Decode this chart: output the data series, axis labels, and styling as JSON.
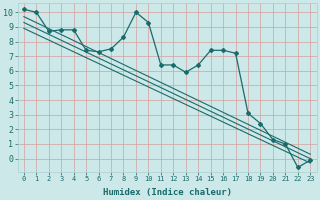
{
  "xlabel": "Humidex (Indice chaleur)",
  "ylabel": "",
  "bg_color": "#cce8e8",
  "grid_color": "#aacfcf",
  "line_color": "#1a6b6b",
  "xlim": [
    -0.5,
    23.5
  ],
  "ylim": [
    -0.9,
    10.6
  ],
  "x_ticks": [
    0,
    1,
    2,
    3,
    4,
    5,
    6,
    7,
    8,
    9,
    10,
    11,
    12,
    13,
    14,
    15,
    16,
    17,
    18,
    19,
    20,
    21,
    22,
    23
  ],
  "y_ticks": [
    0,
    1,
    2,
    3,
    4,
    5,
    6,
    7,
    8,
    9,
    10
  ],
  "y_tick_labels": [
    "0",
    "1",
    "2",
    "3",
    "4",
    "5",
    "6",
    "7",
    "8",
    "9",
    "10"
  ],
  "main_line_x": [
    0,
    1,
    2,
    3,
    4,
    5,
    6,
    7,
    8,
    9,
    10,
    11,
    12,
    13,
    14,
    15,
    16,
    17,
    18,
    19,
    20,
    21,
    22,
    23
  ],
  "main_line_y": [
    10.2,
    10.0,
    8.7,
    8.8,
    8.8,
    7.4,
    7.3,
    7.5,
    8.3,
    10.0,
    9.3,
    6.4,
    6.4,
    5.9,
    6.4,
    7.4,
    7.4,
    7.2,
    3.1,
    2.4,
    1.3,
    1.0,
    -0.6,
    -0.1
  ],
  "trend1_x": [
    0,
    23
  ],
  "trend1_y": [
    9.7,
    0.3
  ],
  "trend2_x": [
    0,
    23
  ],
  "trend2_y": [
    9.3,
    0.0
  ],
  "trend3_x": [
    0,
    23
  ],
  "trend3_y": [
    8.9,
    -0.3
  ],
  "xlabel_fontsize": 6.5,
  "tick_fontsize_x": 5.0,
  "tick_fontsize_y": 6.0
}
